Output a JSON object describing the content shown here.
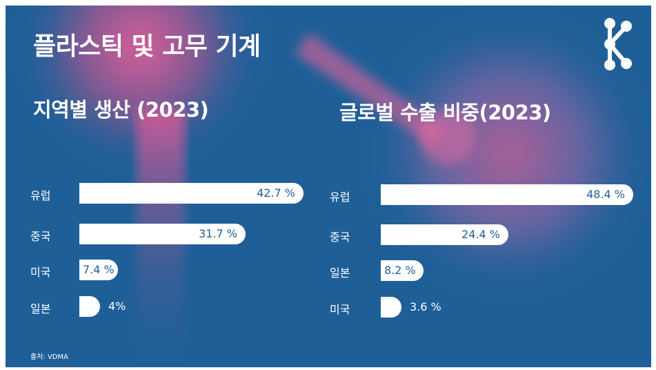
{
  "title": "플라스틱 및 고무 기계",
  "source": "출처: VDMA",
  "logo_icon": "network-nodes-icon",
  "colors": {
    "background": "#1f5f98",
    "bar": "#ffffff",
    "accent_glow": "#e0508f"
  },
  "chart_data": [
    {
      "type": "bar",
      "orientation": "horizontal",
      "title": "지역별 생산 (2023)",
      "categories": [
        "유럽",
        "중국",
        "미국",
        "일본"
      ],
      "values": [
        42.7,
        31.7,
        7.4,
        4
      ],
      "value_labels": [
        "42.7 %",
        "31.7 %",
        "7.4 %",
        "4%"
      ],
      "unit": "%",
      "grid": false,
      "legend": "none"
    },
    {
      "type": "bar",
      "orientation": "horizontal",
      "title": "글로벌 수출 비중(2023)",
      "categories": [
        "유럽",
        "중국",
        "일본",
        "미국"
      ],
      "values": [
        48.4,
        24.4,
        8.2,
        3.6
      ],
      "value_labels": [
        "48.4 %",
        "24.4 %",
        "8.2 %",
        "3.6 %"
      ],
      "unit": "%",
      "grid": false,
      "legend": "none"
    }
  ]
}
